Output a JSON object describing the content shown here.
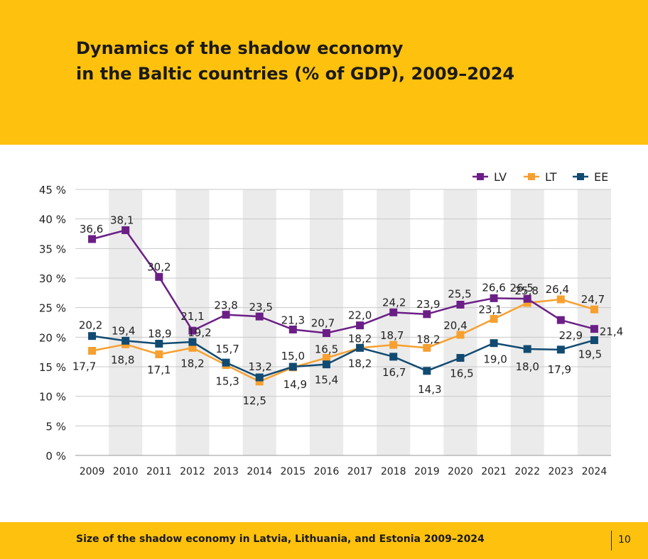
{
  "header": {
    "title_line1": "Dynamics of the shadow economy",
    "title_line2": "in the Baltic countries (% of GDP), 2009–2024"
  },
  "footer": {
    "caption": "Size of the shadow economy in Latvia, Lithuania, and Estonia 2009–2024",
    "page_number": "10"
  },
  "colors": {
    "band": "#fec10e",
    "LV": "#6b1f86",
    "LT": "#f7a030",
    "EE": "#124b72",
    "stripe": "#ebebeb",
    "grid": "#c8c8c8"
  },
  "chart_data": {
    "type": "line",
    "x": [
      "2009",
      "2010",
      "2011",
      "2012",
      "2013",
      "2014",
      "2015",
      "2016",
      "2017",
      "2018",
      "2019",
      "2020",
      "2021",
      "2022",
      "2023",
      "2024"
    ],
    "y_ticks": [
      "0 %",
      "5 %",
      "10 %",
      "15 %",
      "20 %",
      "25 %",
      "30 %",
      "35 %",
      "40 %",
      "45 %"
    ],
    "ylim": [
      0,
      45
    ],
    "grid": true,
    "alternating_column_shading": true,
    "legend_position": "top-right",
    "series": [
      {
        "name": "LV",
        "values": [
          36.6,
          38.1,
          30.2,
          21.1,
          23.8,
          23.5,
          21.3,
          20.7,
          22.0,
          24.2,
          23.9,
          25.5,
          26.6,
          26.5,
          22.9,
          21.4
        ],
        "labels": [
          "36,6",
          "38,1",
          "30,2",
          "21,1",
          "23,8",
          "23,5",
          "21,3",
          "20,7",
          "22,0",
          "24,2",
          "23,9",
          "25,5",
          "26,6",
          "26,5",
          "22,9",
          "21,4"
        ]
      },
      {
        "name": "LT",
        "values": [
          17.7,
          18.8,
          17.1,
          18.2,
          15.3,
          12.5,
          14.9,
          16.5,
          18.2,
          18.7,
          18.2,
          20.4,
          23.1,
          25.8,
          26.4,
          24.7
        ],
        "labels": [
          "17,7",
          "18,8",
          "17,1",
          "18,2",
          "15,3",
          "12,5",
          "14,9",
          "16,5",
          "18,2",
          "18,7",
          "18,2",
          "20,4",
          "23,1",
          "25,8",
          "26,4",
          "24,7"
        ]
      },
      {
        "name": "EE",
        "values": [
          20.2,
          19.4,
          18.9,
          19.2,
          15.7,
          13.2,
          15.0,
          15.4,
          18.2,
          16.7,
          14.3,
          16.5,
          19.0,
          18.0,
          17.9,
          19.5
        ],
        "labels": [
          "20,2",
          "19,4",
          "18,9",
          "19,2",
          "15,7",
          "13,2",
          "15,0",
          "15,4",
          "18,2",
          "16,7",
          "14,3",
          "16,5",
          "19,0",
          "18,0",
          "17,9",
          "19,5"
        ]
      }
    ]
  }
}
